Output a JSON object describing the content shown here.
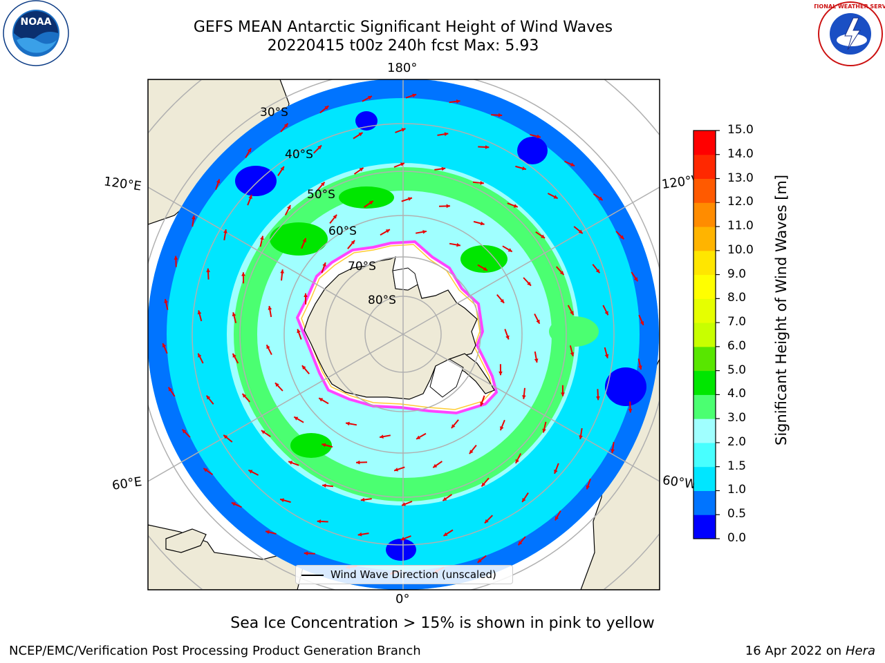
{
  "header": {
    "title_line1": "GEFS MEAN Antarctic Significant Height of Wind Waves",
    "title_line2": "20220415 t00z 240h fcst   Max: 5.93"
  },
  "logos": {
    "left": {
      "name": "noaa-logo",
      "text": "NOAA"
    },
    "right": {
      "name": "nws-logo",
      "text": "NATIONAL WEATHER SERVICE"
    }
  },
  "map": {
    "projection": "south-polar-stereographic",
    "longitude_labels": {
      "top": "180°",
      "bottom": "0°",
      "upper_left": "120°E",
      "upper_right": "120°W",
      "lower_left": "60°E",
      "lower_right": "60°W"
    },
    "latitude_labels": [
      "30°S",
      "40°S",
      "50°S",
      "60°S",
      "70°S",
      "80°S"
    ],
    "legend": "Wind Wave Direction (unscaled)",
    "colors": {
      "land": "#eeead7",
      "ice": "#ffffff",
      "arrow": "#e80000",
      "grid": "#b0b0b0"
    }
  },
  "colorbar": {
    "title": "Significant Height of Wind Waves [m]",
    "tick_labels": [
      "0.0",
      "0.5",
      "1.0",
      "1.5",
      "2.0",
      "3.0",
      "4.0",
      "5.0",
      "6.0",
      "7.0",
      "8.0",
      "9.0",
      "10.0",
      "11.0",
      "12.0",
      "13.0",
      "14.0",
      "15.0"
    ],
    "colors": [
      "#0000ff",
      "#0074ff",
      "#00e6ff",
      "#48ffff",
      "#a0ffff",
      "#4bff71",
      "#00e600",
      "#58e600",
      "#c8ff00",
      "#e6ff00",
      "#ffff00",
      "#ffe600",
      "#ffb400",
      "#ff8c00",
      "#ff5a00",
      "#ff2800",
      "#ff0000"
    ]
  },
  "footer": {
    "note": "Sea Ice Concentration > 15% is shown in pink to yellow",
    "credit": "NCEP/EMC/Verification Post Processing Product Generation Branch",
    "date_prefix": "16 Apr 2022 on",
    "date_host": "Hera"
  }
}
